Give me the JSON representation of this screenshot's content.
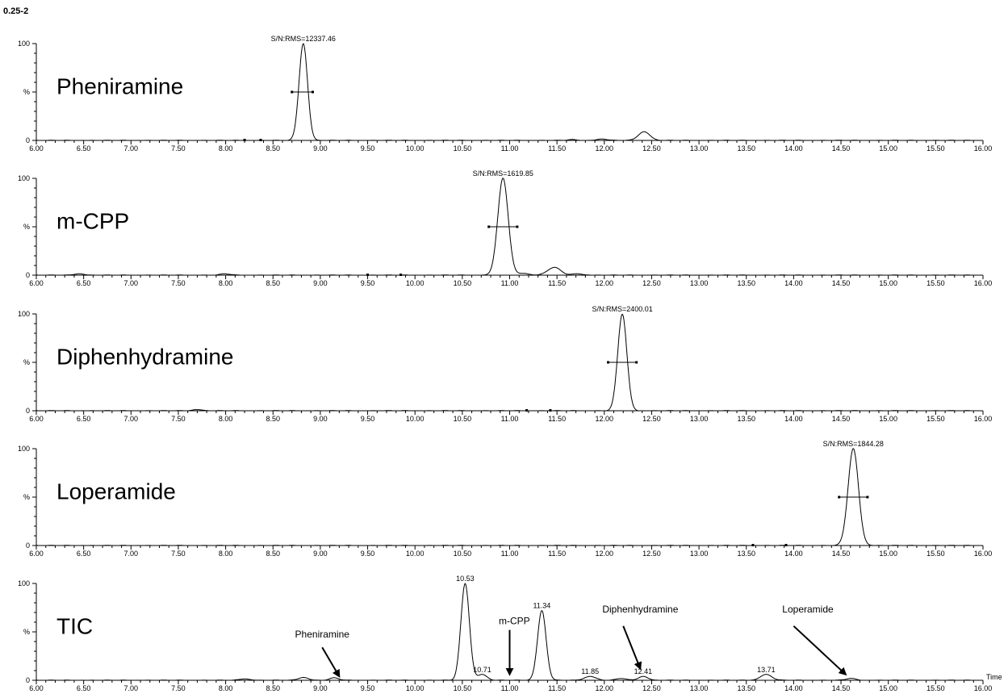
{
  "figure_id": "0.25-2",
  "chart_data": [
    {
      "type": "line",
      "panel_label": "Pheniramine",
      "x_range": [
        6.0,
        16.0
      ],
      "y_range": [
        0,
        100
      ],
      "y_ticks": [
        "0",
        "%",
        "100"
      ],
      "x_ticks": [
        "6.00",
        "6.50",
        "7.00",
        "7.50",
        "8.00",
        "8.50",
        "9.00",
        "9.50",
        "10.00",
        "10.50",
        "11.00",
        "11.50",
        "12.00",
        "12.50",
        "13.00",
        "13.50",
        "14.00",
        "14.50",
        "15.00",
        "15.50",
        "16.00"
      ],
      "peaks": [
        {
          "rt": 8.82,
          "height": 100,
          "sigma": 0.045
        },
        {
          "rt": 12.42,
          "height": 9,
          "sigma": 0.06
        },
        {
          "rt": 11.98,
          "height": 1.5,
          "sigma": 0.05
        },
        {
          "rt": 11.65,
          "height": 0.8,
          "sigma": 0.05
        }
      ],
      "annotations": [
        {
          "text": "S/N:RMS=12337.46",
          "x": 8.82
        }
      ],
      "integration_bar": {
        "x1": 8.7,
        "x2": 8.92,
        "y": 50
      },
      "markers": [
        8.2,
        8.37
      ]
    },
    {
      "type": "line",
      "panel_label": "m-CPP",
      "x_range": [
        6.0,
        16.0
      ],
      "y_range": [
        0,
        100
      ],
      "y_ticks": [
        "0",
        "%",
        "100"
      ],
      "x_ticks": [
        "6.00",
        "6.50",
        "7.00",
        "7.50",
        "8.00",
        "8.50",
        "9.00",
        "9.50",
        "10.00",
        "10.50",
        "11.00",
        "11.50",
        "12.00",
        "12.50",
        "13.00",
        "13.50",
        "14.00",
        "14.50",
        "15.00",
        "15.50",
        "16.00"
      ],
      "peaks": [
        {
          "rt": 10.93,
          "height": 100,
          "sigma": 0.055
        },
        {
          "rt": 11.47,
          "height": 8,
          "sigma": 0.07
        },
        {
          "rt": 11.15,
          "height": 2,
          "sigma": 0.05
        },
        {
          "rt": 6.45,
          "height": 1.5,
          "sigma": 0.05
        },
        {
          "rt": 8.0,
          "height": 1.5,
          "sigma": 0.05
        },
        {
          "rt": 11.72,
          "height": 1.5,
          "sigma": 0.05
        }
      ],
      "annotations": [
        {
          "text": "S/N:RMS=1619.85",
          "x": 10.93
        }
      ],
      "integration_bar": {
        "x1": 10.78,
        "x2": 11.08,
        "y": 50
      },
      "markers": [
        9.5,
        9.85
      ]
    },
    {
      "type": "line",
      "panel_label": "Diphenhydramine",
      "x_range": [
        6.0,
        16.0
      ],
      "y_range": [
        0,
        100
      ],
      "y_ticks": [
        "0",
        "%",
        "100"
      ],
      "x_ticks": [
        "6.00",
        "6.50",
        "7.00",
        "7.50",
        "8.00",
        "8.50",
        "9.00",
        "9.50",
        "10.00",
        "10.50",
        "11.00",
        "11.50",
        "12.00",
        "12.50",
        "13.00",
        "13.50",
        "14.00",
        "14.50",
        "15.00",
        "15.50",
        "16.00"
      ],
      "peaks": [
        {
          "rt": 12.19,
          "height": 100,
          "sigma": 0.048
        },
        {
          "rt": 7.7,
          "height": 1.2,
          "sigma": 0.05
        }
      ],
      "annotations": [
        {
          "text": "S/N:RMS=2400.01",
          "x": 12.19
        }
      ],
      "integration_bar": {
        "x1": 12.04,
        "x2": 12.34,
        "y": 50
      },
      "markers": [
        11.18,
        11.43
      ]
    },
    {
      "type": "line",
      "panel_label": "Loperamide",
      "x_range": [
        6.0,
        16.0
      ],
      "y_range": [
        0,
        100
      ],
      "y_ticks": [
        "0",
        "%",
        "100"
      ],
      "x_ticks": [
        "6.00",
        "6.50",
        "7.00",
        "7.50",
        "8.00",
        "8.50",
        "9.00",
        "9.50",
        "10.00",
        "10.50",
        "11.00",
        "11.50",
        "12.00",
        "12.50",
        "13.00",
        "13.50",
        "14.00",
        "14.50",
        "15.00",
        "15.50",
        "16.00"
      ],
      "peaks": [
        {
          "rt": 14.63,
          "height": 100,
          "sigma": 0.055
        }
      ],
      "annotations": [
        {
          "text": "S/N:RMS=1844.28",
          "x": 14.63
        }
      ],
      "integration_bar": {
        "x1": 14.48,
        "x2": 14.78,
        "y": 50
      },
      "markers": [
        13.57,
        13.92
      ]
    },
    {
      "type": "line",
      "panel_label": "TIC",
      "x_range": [
        6.0,
        16.0
      ],
      "y_range": [
        0,
        100
      ],
      "y_ticks": [
        "0",
        "%",
        "100"
      ],
      "x_ticks": [
        "6.00",
        "6.50",
        "7.00",
        "7.50",
        "8.00",
        "8.50",
        "9.00",
        "9.50",
        "10.00",
        "10.50",
        "11.00",
        "11.50",
        "12.00",
        "12.50",
        "13.00",
        "13.50",
        "14.00",
        "14.50",
        "15.00",
        "15.50",
        "16.00"
      ],
      "x_axis_label": "Time",
      "peaks": [
        {
          "rt": 10.53,
          "height": 100,
          "sigma": 0.045
        },
        {
          "rt": 11.34,
          "height": 72,
          "sigma": 0.045
        },
        {
          "rt": 10.71,
          "height": 6,
          "sigma": 0.05
        },
        {
          "rt": 11.85,
          "height": 4,
          "sigma": 0.06
        },
        {
          "rt": 12.41,
          "height": 4,
          "sigma": 0.05
        },
        {
          "rt": 13.71,
          "height": 6,
          "sigma": 0.06
        },
        {
          "rt": 8.82,
          "height": 3,
          "sigma": 0.05
        },
        {
          "rt": 9.15,
          "height": 2.5,
          "sigma": 0.05
        },
        {
          "rt": 12.18,
          "height": 2,
          "sigma": 0.05
        },
        {
          "rt": 14.6,
          "height": 2,
          "sigma": 0.05
        },
        {
          "rt": 8.2,
          "height": 1.5,
          "sigma": 0.05
        }
      ],
      "peak_labels": [
        {
          "text": "10.53",
          "x": 10.53,
          "y": 100
        },
        {
          "text": "10.71",
          "x": 10.71,
          "y": 6
        },
        {
          "text": "11.34",
          "x": 11.34,
          "y": 72
        },
        {
          "text": "11.85",
          "x": 11.85,
          "y": 4
        },
        {
          "text": "12.41",
          "x": 12.41,
          "y": 4
        },
        {
          "text": "13.71",
          "x": 13.71,
          "y": 6
        }
      ],
      "callouts": [
        {
          "text": "Pheniramine",
          "label_x": 9.02,
          "label_y": 44,
          "arrow_from": [
            9.02,
            34
          ],
          "arrow_to": [
            9.2,
            4
          ]
        },
        {
          "text": "m-CPP",
          "label_x": 11.05,
          "label_y": 58,
          "arrow_from": [
            11.0,
            52
          ],
          "arrow_to": [
            11.0,
            6
          ]
        },
        {
          "text": "Diphenhydramine",
          "label_x": 12.38,
          "label_y": 70,
          "arrow_from": [
            12.2,
            56
          ],
          "arrow_to": [
            12.38,
            12
          ]
        },
        {
          "text": "Loperamide",
          "label_x": 14.15,
          "label_y": 70,
          "arrow_from": [
            14.0,
            56
          ],
          "arrow_to": [
            14.55,
            6
          ]
        }
      ]
    }
  ]
}
